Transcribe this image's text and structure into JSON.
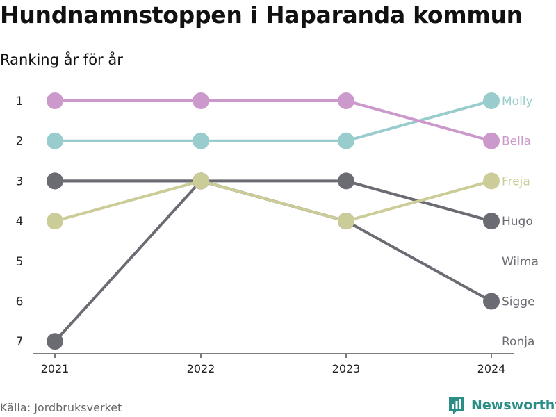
{
  "title": "Hundnamnstoppen i Haparanda kommun",
  "subtitle": "Ranking år för år",
  "source": "Källa: Jordbruksverket",
  "brand": "Newsworthy",
  "colors": {
    "pink": "#cc99cc",
    "teal": "#99cccc",
    "olive": "#cccc99",
    "grey": "#6b6b73",
    "brand": "#2a8d86"
  },
  "chart_data": {
    "type": "line",
    "x": [
      "2021",
      "2022",
      "2023",
      "2024"
    ],
    "y_ticks": [
      "1",
      "2",
      "3",
      "4",
      "5",
      "6",
      "7"
    ],
    "ylim": [
      1,
      7
    ],
    "y_inverted": true,
    "series": [
      {
        "name": "Ronja",
        "color": "#6b6b73",
        "values": [
          7,
          3,
          4,
          null
        ]
      },
      {
        "name": "Wilma",
        "color": "#6b6b73",
        "values": [
          3,
          3,
          4,
          null
        ]
      },
      {
        "name": "Sigge",
        "color": "#6b6b73",
        "values": [
          null,
          3,
          4,
          6
        ]
      },
      {
        "name": "Hugo",
        "color": "#6b6b73",
        "values": [
          3,
          3,
          3,
          4
        ]
      },
      {
        "name": "Freja",
        "color": "#cccc99",
        "values": [
          4,
          3,
          4,
          3
        ]
      },
      {
        "name": "Molly",
        "color": "#99cccc",
        "values": [
          2,
          2,
          2,
          1
        ]
      },
      {
        "name": "Bella",
        "color": "#cc99cc",
        "values": [
          1,
          1,
          1,
          2
        ]
      }
    ],
    "end_labels": [
      {
        "name": "Molly",
        "rank": 1,
        "color": "#99cccc"
      },
      {
        "name": "Bella",
        "rank": 2,
        "color": "#cc99cc"
      },
      {
        "name": "Freja",
        "rank": 3,
        "color": "#cccc99"
      },
      {
        "name": "Hugo",
        "rank": 4,
        "color": "#6b6b73"
      },
      {
        "name": "Wilma",
        "rank": 5,
        "color": "#6b6b73"
      },
      {
        "name": "Sigge",
        "rank": 6,
        "color": "#6b6b73"
      },
      {
        "name": "Ronja",
        "rank": 7,
        "color": "#6b6b73"
      }
    ]
  }
}
